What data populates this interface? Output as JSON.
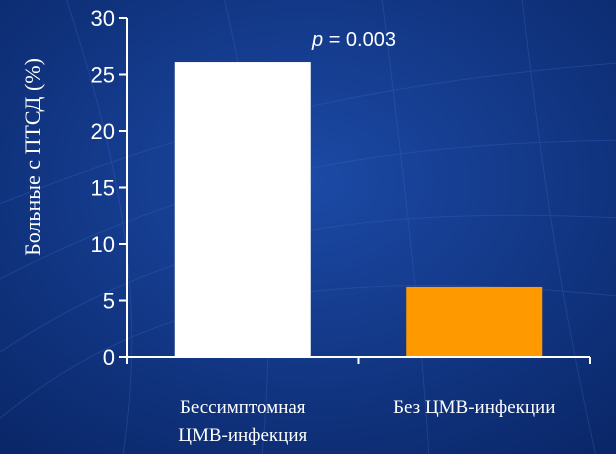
{
  "chart_data": {
    "type": "bar",
    "categories": [
      [
        "Бессимптомная",
        "ЦМВ-инфекция"
      ],
      [
        "Без ЦМВ-инфекции"
      ]
    ],
    "values": [
      26.1,
      6.2
    ],
    "bar_colors": [
      "#ffffff",
      "#ff9900"
    ],
    "ylabel": "Больные с ПТСД (%)",
    "ylim": [
      0,
      30
    ],
    "yticks": [
      "0",
      "5",
      "10",
      "15",
      "20",
      "25",
      "30"
    ],
    "annotation": {
      "p_letter": "p",
      "p_rest": " = 0.003"
    },
    "grid": false
  },
  "colors": {
    "background": "#0d2f78",
    "text": "#ffffff",
    "axis": "#ffffff"
  }
}
